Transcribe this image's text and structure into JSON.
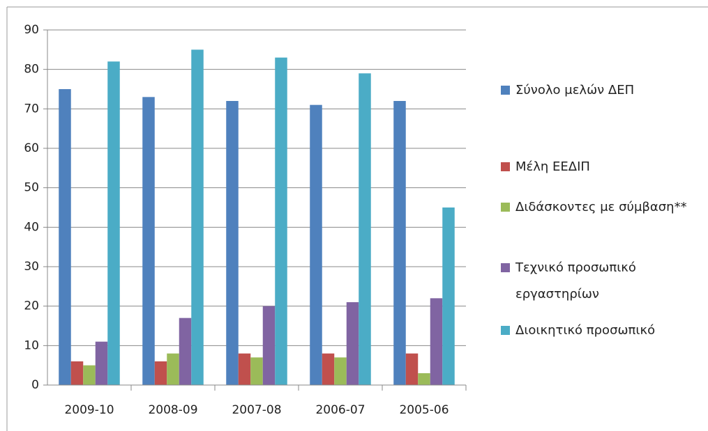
{
  "chart_data": {
    "type": "bar",
    "categories": [
      "2009-10",
      "2008-09",
      "2007-08",
      "2006-07",
      "2005-06"
    ],
    "series": [
      {
        "name": "Σύνολο μελών ΔΕΠ",
        "color": "#4f81bd",
        "values": [
          75,
          73,
          72,
          71,
          72
        ]
      },
      {
        "name": "Μέλη ΕΕΔΙΠ",
        "color": "#c0504d",
        "values": [
          6,
          6,
          8,
          8,
          8
        ]
      },
      {
        "name": "Διδάσκοντες με σύμβαση**",
        "color": "#9bbb59",
        "values": [
          5,
          8,
          7,
          7,
          3
        ]
      },
      {
        "name": "Τεχνικό προσωπικό εργαστηρίων",
        "color": "#8064a2",
        "values": [
          11,
          17,
          20,
          21,
          22
        ]
      },
      {
        "name": "Διοικητικό προσωπικό",
        "color": "#4bacc6",
        "values": [
          82,
          85,
          83,
          79,
          45
        ]
      }
    ],
    "ylim": [
      0,
      90
    ],
    "yticks": [
      0,
      10,
      20,
      30,
      40,
      50,
      60,
      70,
      80,
      90
    ],
    "grid": true,
    "legend": "right"
  }
}
